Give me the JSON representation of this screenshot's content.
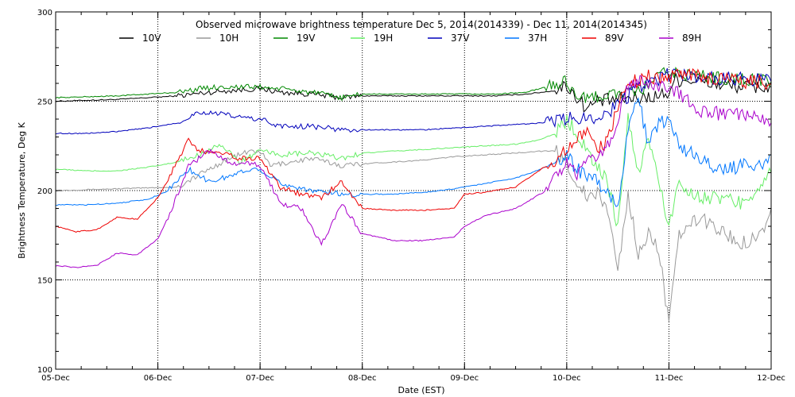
{
  "chart_data": {
    "type": "line",
    "title": "Observed microwave brightness temperature Dec  5, 2014(2014339) - Dec 11, 2014(2014345)",
    "xlabel": "Date (EST)",
    "ylabel": "Brightness Temperature, Deg K",
    "xlim": [
      0,
      7
    ],
    "ylim": [
      100,
      300
    ],
    "x_ticks": [
      0,
      1,
      2,
      3,
      4,
      5,
      6,
      7
    ],
    "x_tick_labels": [
      "05-Dec",
      "06-Dec",
      "07-Dec",
      "08-Dec",
      "09-Dec",
      "10-Dec",
      "11-Dec",
      "12-Dec"
    ],
    "y_ticks": [
      100,
      150,
      200,
      250,
      300
    ],
    "y_tick_labels": [
      "100",
      "150",
      "200",
      "250",
      "300"
    ],
    "grid": true,
    "legend_position": "top",
    "series": [
      {
        "name": "10V",
        "color": "#000000",
        "points": [
          [
            0,
            250
          ],
          [
            0.3,
            250.5
          ],
          [
            0.6,
            251
          ],
          [
            0.9,
            252
          ],
          [
            1.2,
            253
          ],
          [
            1.5,
            255
          ],
          [
            1.7,
            256
          ],
          [
            2,
            257
          ],
          [
            2.2,
            255
          ],
          [
            2.5,
            254
          ],
          [
            2.8,
            252
          ],
          [
            3,
            253
          ],
          [
            3.3,
            253
          ],
          [
            3.6,
            253
          ],
          [
            4,
            253
          ],
          [
            4.3,
            253
          ],
          [
            4.6,
            254
          ],
          [
            4.9,
            256
          ],
          [
            5,
            259
          ],
          [
            5.1,
            252
          ],
          [
            5.2,
            246
          ],
          [
            5.3,
            250
          ],
          [
            5.5,
            251
          ],
          [
            5.7,
            252
          ],
          [
            5.9,
            253
          ],
          [
            6,
            255
          ],
          [
            6.05,
            262
          ],
          [
            6.2,
            262
          ],
          [
            6.5,
            259
          ],
          [
            6.8,
            258
          ],
          [
            7,
            258
          ]
        ]
      },
      {
        "name": "10H",
        "color": "#999999",
        "points": [
          [
            0,
            200
          ],
          [
            0.3,
            200.5
          ],
          [
            0.6,
            201
          ],
          [
            0.9,
            201.5
          ],
          [
            1.2,
            202
          ],
          [
            1.5,
            212
          ],
          [
            1.7,
            218
          ],
          [
            1.9,
            222
          ],
          [
            2,
            222
          ],
          [
            2.1,
            214
          ],
          [
            2.3,
            216
          ],
          [
            2.5,
            218
          ],
          [
            2.8,
            214
          ],
          [
            3,
            215
          ],
          [
            3.3,
            216
          ],
          [
            3.6,
            217
          ],
          [
            3.9,
            219
          ],
          [
            4.2,
            220
          ],
          [
            4.5,
            221
          ],
          [
            4.7,
            222
          ],
          [
            4.9,
            222
          ],
          [
            5,
            215
          ],
          [
            5.1,
            205
          ],
          [
            5.2,
            196
          ],
          [
            5.3,
            198
          ],
          [
            5.4,
            190
          ],
          [
            5.5,
            155
          ],
          [
            5.6,
            198
          ],
          [
            5.7,
            165
          ],
          [
            5.8,
            175
          ],
          [
            5.9,
            168
          ],
          [
            6,
            125
          ],
          [
            6.1,
            175
          ],
          [
            6.3,
            185
          ],
          [
            6.5,
            178
          ],
          [
            6.7,
            170
          ],
          [
            6.9,
            176
          ],
          [
            7,
            190
          ]
        ]
      },
      {
        "name": "19V",
        "color": "#008800",
        "points": [
          [
            0,
            252
          ],
          [
            0.3,
            252.5
          ],
          [
            0.6,
            253
          ],
          [
            0.9,
            254
          ],
          [
            1.2,
            255
          ],
          [
            1.4,
            257
          ],
          [
            1.6,
            258
          ],
          [
            1.8,
            258
          ],
          [
            2,
            258
          ],
          [
            2.2,
            257
          ],
          [
            2.5,
            255
          ],
          [
            2.8,
            252
          ],
          [
            3,
            254
          ],
          [
            3.3,
            254
          ],
          [
            3.6,
            254
          ],
          [
            4,
            254
          ],
          [
            4.3,
            254
          ],
          [
            4.6,
            255
          ],
          [
            4.8,
            258
          ],
          [
            5,
            261
          ],
          [
            5.1,
            254
          ],
          [
            5.2,
            250
          ],
          [
            5.3,
            253
          ],
          [
            5.5,
            254
          ],
          [
            5.7,
            255
          ],
          [
            5.9,
            264
          ],
          [
            6,
            266
          ],
          [
            6.2,
            265
          ],
          [
            6.5,
            263
          ],
          [
            6.8,
            262
          ],
          [
            7,
            261
          ]
        ]
      },
      {
        "name": "19H",
        "color": "#66ee66",
        "points": [
          [
            0,
            212
          ],
          [
            0.3,
            211
          ],
          [
            0.6,
            211
          ],
          [
            0.9,
            213
          ],
          [
            1.2,
            216
          ],
          [
            1.4,
            220
          ],
          [
            1.6,
            226
          ],
          [
            1.8,
            216
          ],
          [
            2,
            222
          ],
          [
            2.2,
            220
          ],
          [
            2.5,
            221
          ],
          [
            2.8,
            218
          ],
          [
            3,
            221
          ],
          [
            3.3,
            222
          ],
          [
            3.6,
            223
          ],
          [
            3.9,
            224
          ],
          [
            4.2,
            225
          ],
          [
            4.5,
            226
          ],
          [
            4.7,
            228
          ],
          [
            4.9,
            232
          ],
          [
            5,
            240
          ],
          [
            5.1,
            232
          ],
          [
            5.2,
            222
          ],
          [
            5.3,
            214
          ],
          [
            5.4,
            204
          ],
          [
            5.5,
            180
          ],
          [
            5.6,
            240
          ],
          [
            5.7,
            210
          ],
          [
            5.8,
            230
          ],
          [
            5.9,
            205
          ],
          [
            6,
            180
          ],
          [
            6.1,
            205
          ],
          [
            6.3,
            196
          ],
          [
            6.5,
            196
          ],
          [
            6.7,
            193
          ],
          [
            6.9,
            203
          ],
          [
            7,
            210
          ]
        ]
      },
      {
        "name": "37V",
        "color": "#0000bb",
        "points": [
          [
            0,
            232
          ],
          [
            0.3,
            232
          ],
          [
            0.6,
            233
          ],
          [
            0.9,
            235
          ],
          [
            1.2,
            238
          ],
          [
            1.4,
            244
          ],
          [
            1.6,
            243
          ],
          [
            1.8,
            241
          ],
          [
            2,
            240
          ],
          [
            2.2,
            236
          ],
          [
            2.5,
            236
          ],
          [
            2.8,
            234
          ],
          [
            3,
            234
          ],
          [
            3.3,
            234
          ],
          [
            3.6,
            234
          ],
          [
            3.9,
            235
          ],
          [
            4.2,
            236
          ],
          [
            4.5,
            237
          ],
          [
            4.8,
            238
          ],
          [
            5,
            240
          ],
          [
            5.1,
            241
          ],
          [
            5.2,
            240
          ],
          [
            5.4,
            244
          ],
          [
            5.5,
            248
          ],
          [
            5.7,
            258
          ],
          [
            5.9,
            262
          ],
          [
            6,
            265
          ],
          [
            6.2,
            264
          ],
          [
            6.5,
            263
          ],
          [
            6.8,
            262
          ],
          [
            7,
            261
          ]
        ]
      },
      {
        "name": "37H",
        "color": "#0077ff",
        "points": [
          [
            0,
            192
          ],
          [
            0.3,
            192
          ],
          [
            0.6,
            193
          ],
          [
            0.9,
            195
          ],
          [
            1.1,
            200
          ],
          [
            1.3,
            212
          ],
          [
            1.5,
            205
          ],
          [
            1.7,
            208
          ],
          [
            1.9,
            212
          ],
          [
            2,
            212
          ],
          [
            2.2,
            204
          ],
          [
            2.5,
            200
          ],
          [
            2.8,
            198
          ],
          [
            3,
            198
          ],
          [
            3.3,
            198
          ],
          [
            3.6,
            199
          ],
          [
            3.9,
            201
          ],
          [
            4.2,
            204
          ],
          [
            4.5,
            207
          ],
          [
            4.7,
            211
          ],
          [
            4.9,
            216
          ],
          [
            5,
            220
          ],
          [
            5.1,
            212
          ],
          [
            5.2,
            208
          ],
          [
            5.3,
            205
          ],
          [
            5.4,
            200
          ],
          [
            5.5,
            188
          ],
          [
            5.6,
            236
          ],
          [
            5.7,
            252
          ],
          [
            5.8,
            225
          ],
          [
            5.9,
            238
          ],
          [
            6,
            240
          ],
          [
            6.1,
            225
          ],
          [
            6.3,
            218
          ],
          [
            6.5,
            211
          ],
          [
            6.7,
            214
          ],
          [
            6.9,
            215
          ],
          [
            7,
            220
          ]
        ]
      },
      {
        "name": "89V",
        "color": "#ee0000",
        "points": [
          [
            0,
            180
          ],
          [
            0.2,
            177
          ],
          [
            0.4,
            178
          ],
          [
            0.6,
            185
          ],
          [
            0.8,
            184
          ],
          [
            1,
            196
          ],
          [
            1.1,
            206
          ],
          [
            1.2,
            218
          ],
          [
            1.3,
            228
          ],
          [
            1.4,
            222
          ],
          [
            1.6,
            222
          ],
          [
            1.8,
            218
          ],
          [
            2,
            218
          ],
          [
            2.2,
            202
          ],
          [
            2.4,
            198
          ],
          [
            2.6,
            196
          ],
          [
            2.8,
            205
          ],
          [
            3,
            190
          ],
          [
            3.3,
            189
          ],
          [
            3.6,
            189
          ],
          [
            3.9,
            190
          ],
          [
            4,
            198
          ],
          [
            4.2,
            199
          ],
          [
            4.5,
            202
          ],
          [
            4.8,
            214
          ],
          [
            5,
            222
          ],
          [
            5.1,
            229
          ],
          [
            5.2,
            232
          ],
          [
            5.3,
            223
          ],
          [
            5.4,
            228
          ],
          [
            5.5,
            248
          ],
          [
            5.6,
            262
          ],
          [
            5.7,
            261
          ],
          [
            5.8,
            264
          ],
          [
            5.9,
            263
          ],
          [
            6,
            262
          ],
          [
            6.1,
            266
          ],
          [
            6.3,
            264
          ],
          [
            6.5,
            262
          ],
          [
            6.8,
            261
          ],
          [
            7,
            260
          ]
        ]
      },
      {
        "name": "89H",
        "color": "#aa00cc",
        "points": [
          [
            0,
            158
          ],
          [
            0.2,
            157
          ],
          [
            0.4,
            158
          ],
          [
            0.6,
            165
          ],
          [
            0.8,
            164
          ],
          [
            1,
            173
          ],
          [
            1.1,
            185
          ],
          [
            1.2,
            199
          ],
          [
            1.3,
            214
          ],
          [
            1.5,
            222
          ],
          [
            1.7,
            216
          ],
          [
            2,
            214
          ],
          [
            2.2,
            193
          ],
          [
            2.4,
            190
          ],
          [
            2.6,
            170
          ],
          [
            2.8,
            192
          ],
          [
            3,
            176
          ],
          [
            3.3,
            172
          ],
          [
            3.6,
            172
          ],
          [
            3.9,
            174
          ],
          [
            4,
            180
          ],
          [
            4.2,
            186
          ],
          [
            4.5,
            190
          ],
          [
            4.8,
            200
          ],
          [
            5,
            215
          ],
          [
            5.1,
            208
          ],
          [
            5.2,
            217
          ],
          [
            5.3,
            218
          ],
          [
            5.4,
            225
          ],
          [
            5.5,
            240
          ],
          [
            5.6,
            258
          ],
          [
            5.7,
            262
          ],
          [
            5.8,
            260
          ],
          [
            5.9,
            258
          ],
          [
            6,
            258
          ],
          [
            6.1,
            255
          ],
          [
            6.3,
            245
          ],
          [
            6.5,
            243
          ],
          [
            6.7,
            242
          ],
          [
            6.9,
            241
          ],
          [
            7,
            238
          ]
        ]
      }
    ]
  }
}
